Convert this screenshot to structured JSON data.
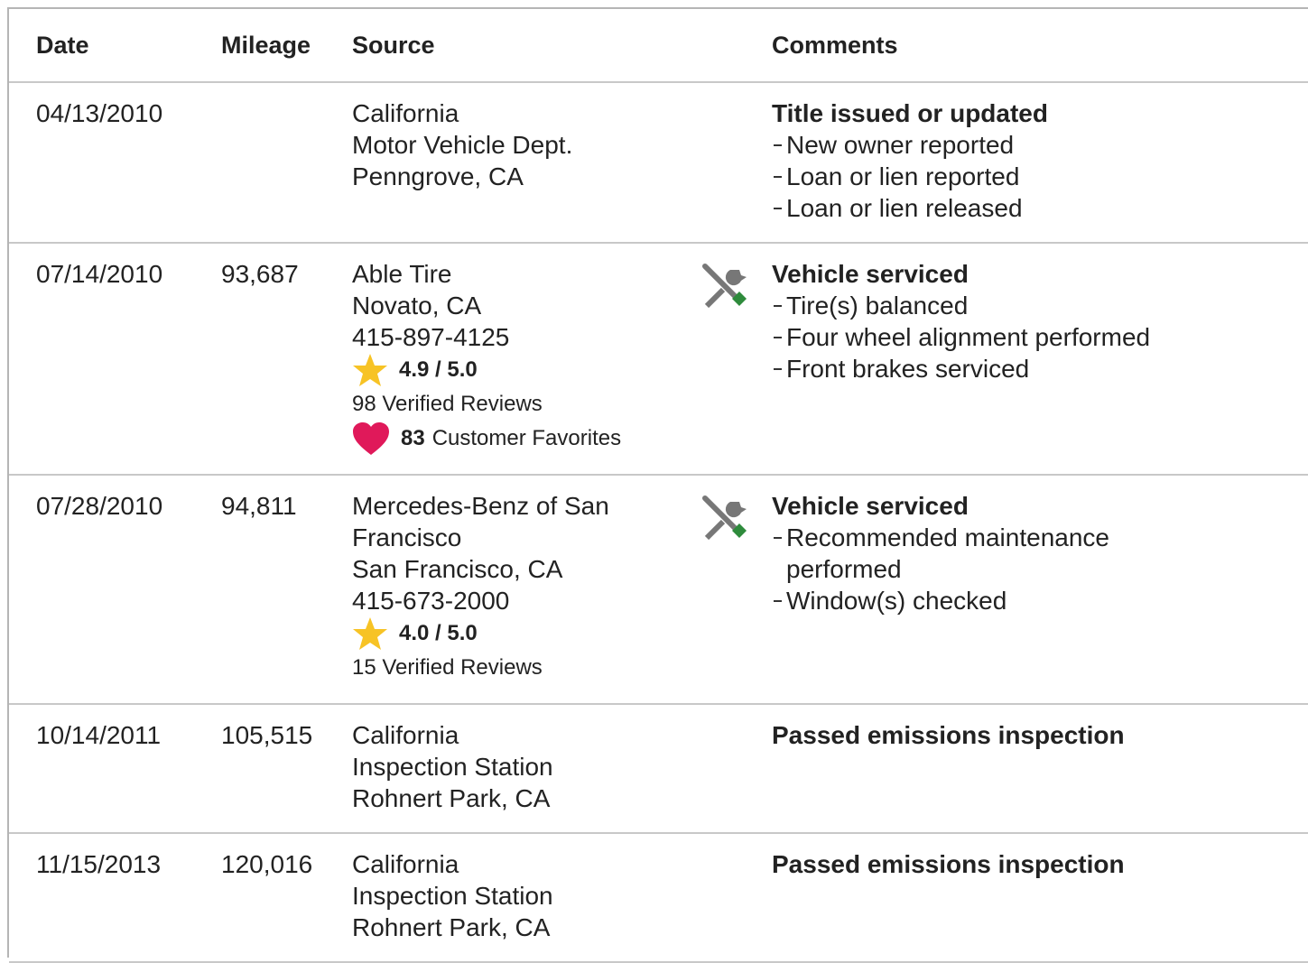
{
  "table": {
    "headers": [
      "Date",
      "Mileage",
      "Source",
      "Comments"
    ],
    "rows": [
      {
        "date": "04/13/2010",
        "source": [
          "California",
          "Motor Vehicle Dept.",
          "Penngrove, CA"
        ],
        "comment": {
          "title": "Title issued or updated",
          "items": [
            "New owner reported",
            "Loan or lien reported",
            "Loan or lien released"
          ]
        }
      },
      {
        "date": "07/14/2010",
        "mileage": "93,687",
        "source": [
          "Able Tire",
          "Novato, CA",
          "415-897-4125"
        ],
        "rating": "4.9 / 5.0",
        "reviews": "98 Verified Reviews",
        "favorites": {
          "count": "83",
          "label": "Customer Favorites"
        },
        "service_icon": true,
        "comment": {
          "title": "Vehicle serviced",
          "items": [
            "Tire(s) balanced",
            "Four wheel alignment performed",
            "Front brakes serviced"
          ]
        }
      },
      {
        "date": "07/28/2010",
        "mileage": "94,811",
        "source": [
          "Mercedes-Benz of San Francisco",
          "San Francisco, CA",
          "415-673-2000"
        ],
        "rating": "4.0 / 5.0",
        "reviews": "15 Verified Reviews",
        "service_icon": true,
        "comment": {
          "title": "Vehicle serviced",
          "items": [
            "Recommended maintenance performed",
            "Window(s) checked"
          ]
        }
      },
      {
        "date": "10/14/2011",
        "mileage": "105,515",
        "source": [
          "California",
          "Inspection Station",
          "Rohnert Park, CA"
        ],
        "comment": {
          "title": "Passed emissions inspection"
        }
      },
      {
        "date": "11/15/2013",
        "mileage": "120,016",
        "source": [
          "California",
          "Inspection Station",
          "Rohnert Park, CA"
        ],
        "comment": {
          "title": "Passed emissions inspection"
        }
      }
    ]
  }
}
